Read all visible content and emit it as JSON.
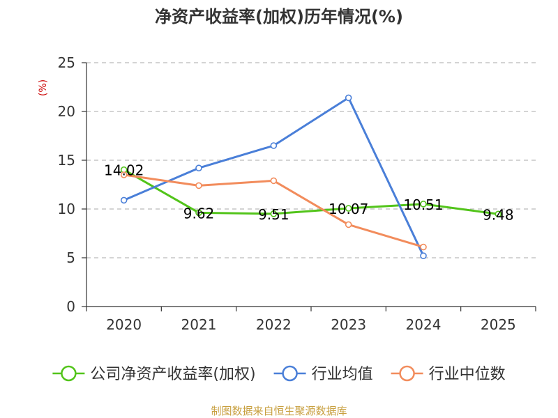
{
  "chart_data": {
    "type": "line",
    "title": "净资产收益率(加权)历年情况(%)",
    "ylabel": "(%)",
    "xlabel": "",
    "categories": [
      "2020",
      "2021",
      "2022",
      "2023",
      "2024",
      "2025"
    ],
    "ylim": [
      0,
      25
    ],
    "yticks": [
      0,
      5,
      10,
      15,
      20,
      25
    ],
    "grid": true,
    "legend_position": "bottom",
    "series": [
      {
        "name": "公司净资产收益率(加权)",
        "color": "#52c41a",
        "values": [
          14.02,
          9.62,
          9.51,
          10.07,
          10.51,
          9.48
        ],
        "labels": [
          "14.02",
          "9.62",
          "9.51",
          "10.07",
          "10.51",
          "9.48"
        ],
        "show_labels": true
      },
      {
        "name": "行业均值",
        "color": "#4a7fd8",
        "values": [
          10.9,
          14.2,
          16.5,
          21.4,
          5.2,
          null
        ],
        "show_labels": false
      },
      {
        "name": "行业中位数",
        "color": "#f28c5c",
        "values": [
          13.5,
          12.4,
          12.9,
          8.4,
          6.1,
          null
        ],
        "show_labels": false
      }
    ]
  },
  "source": "制图数据来自恒生聚源数据库"
}
